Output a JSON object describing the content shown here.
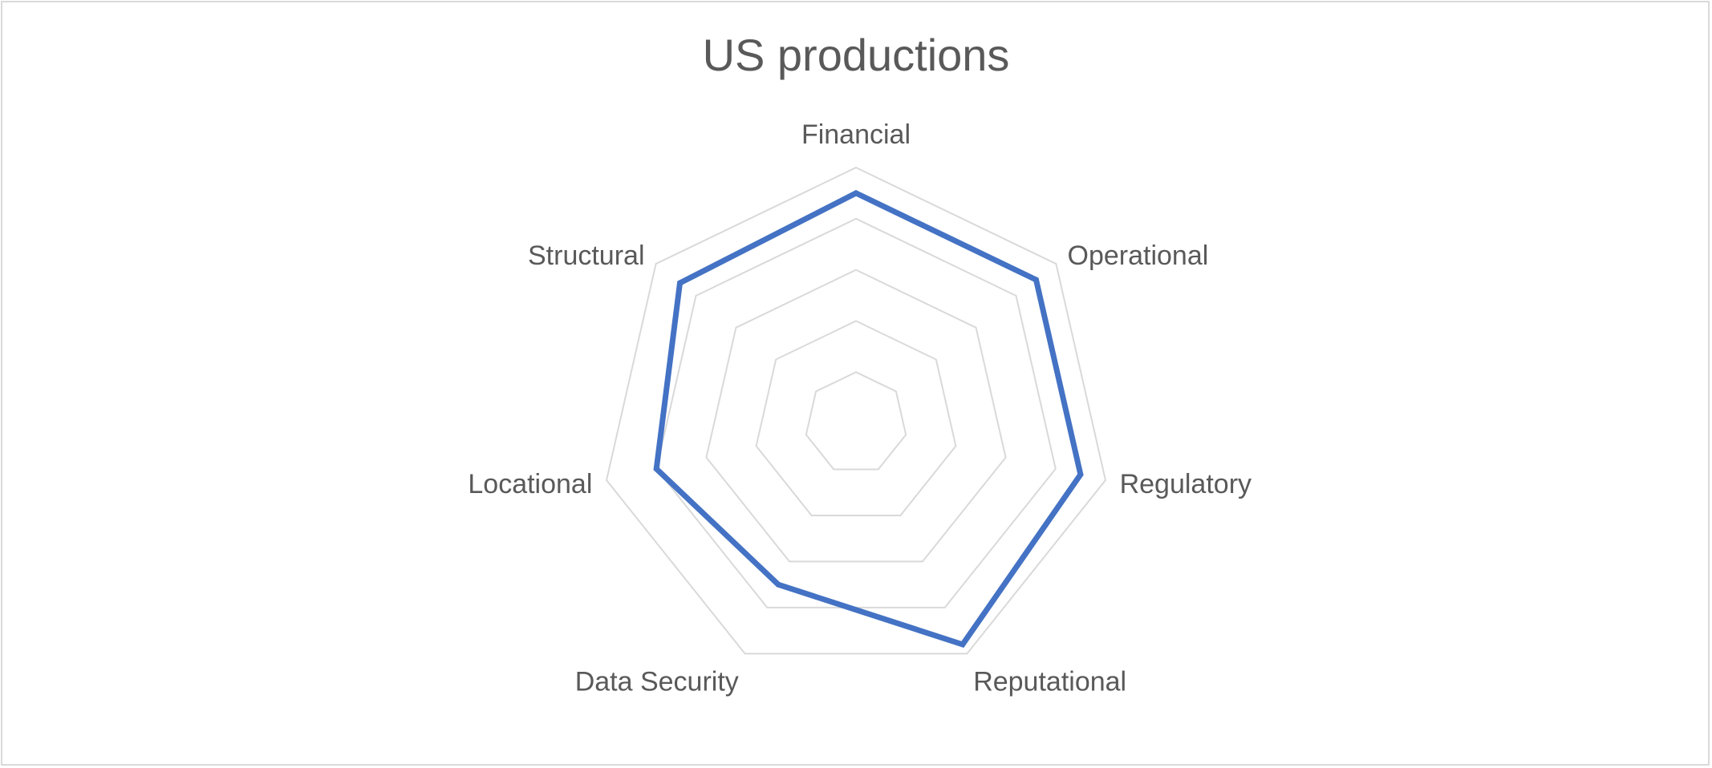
{
  "chart_data": {
    "type": "radar",
    "title": "US productions",
    "categories": [
      "Financial",
      "Operational",
      "Regulatory",
      "Reputational",
      "Data Security",
      "Locational",
      "Structural"
    ],
    "series": [
      {
        "values": [
          4.5,
          4.5,
          4.5,
          4.8,
          3.5,
          4.0,
          4.4
        ]
      }
    ],
    "rlim": [
      0,
      5
    ],
    "gridlines": [
      1,
      2,
      3,
      4,
      5
    ],
    "grid": true,
    "legend": "none",
    "colors": {
      "series": "#4472c4",
      "grid": "#d9d9d9",
      "text": "#595959"
    }
  }
}
